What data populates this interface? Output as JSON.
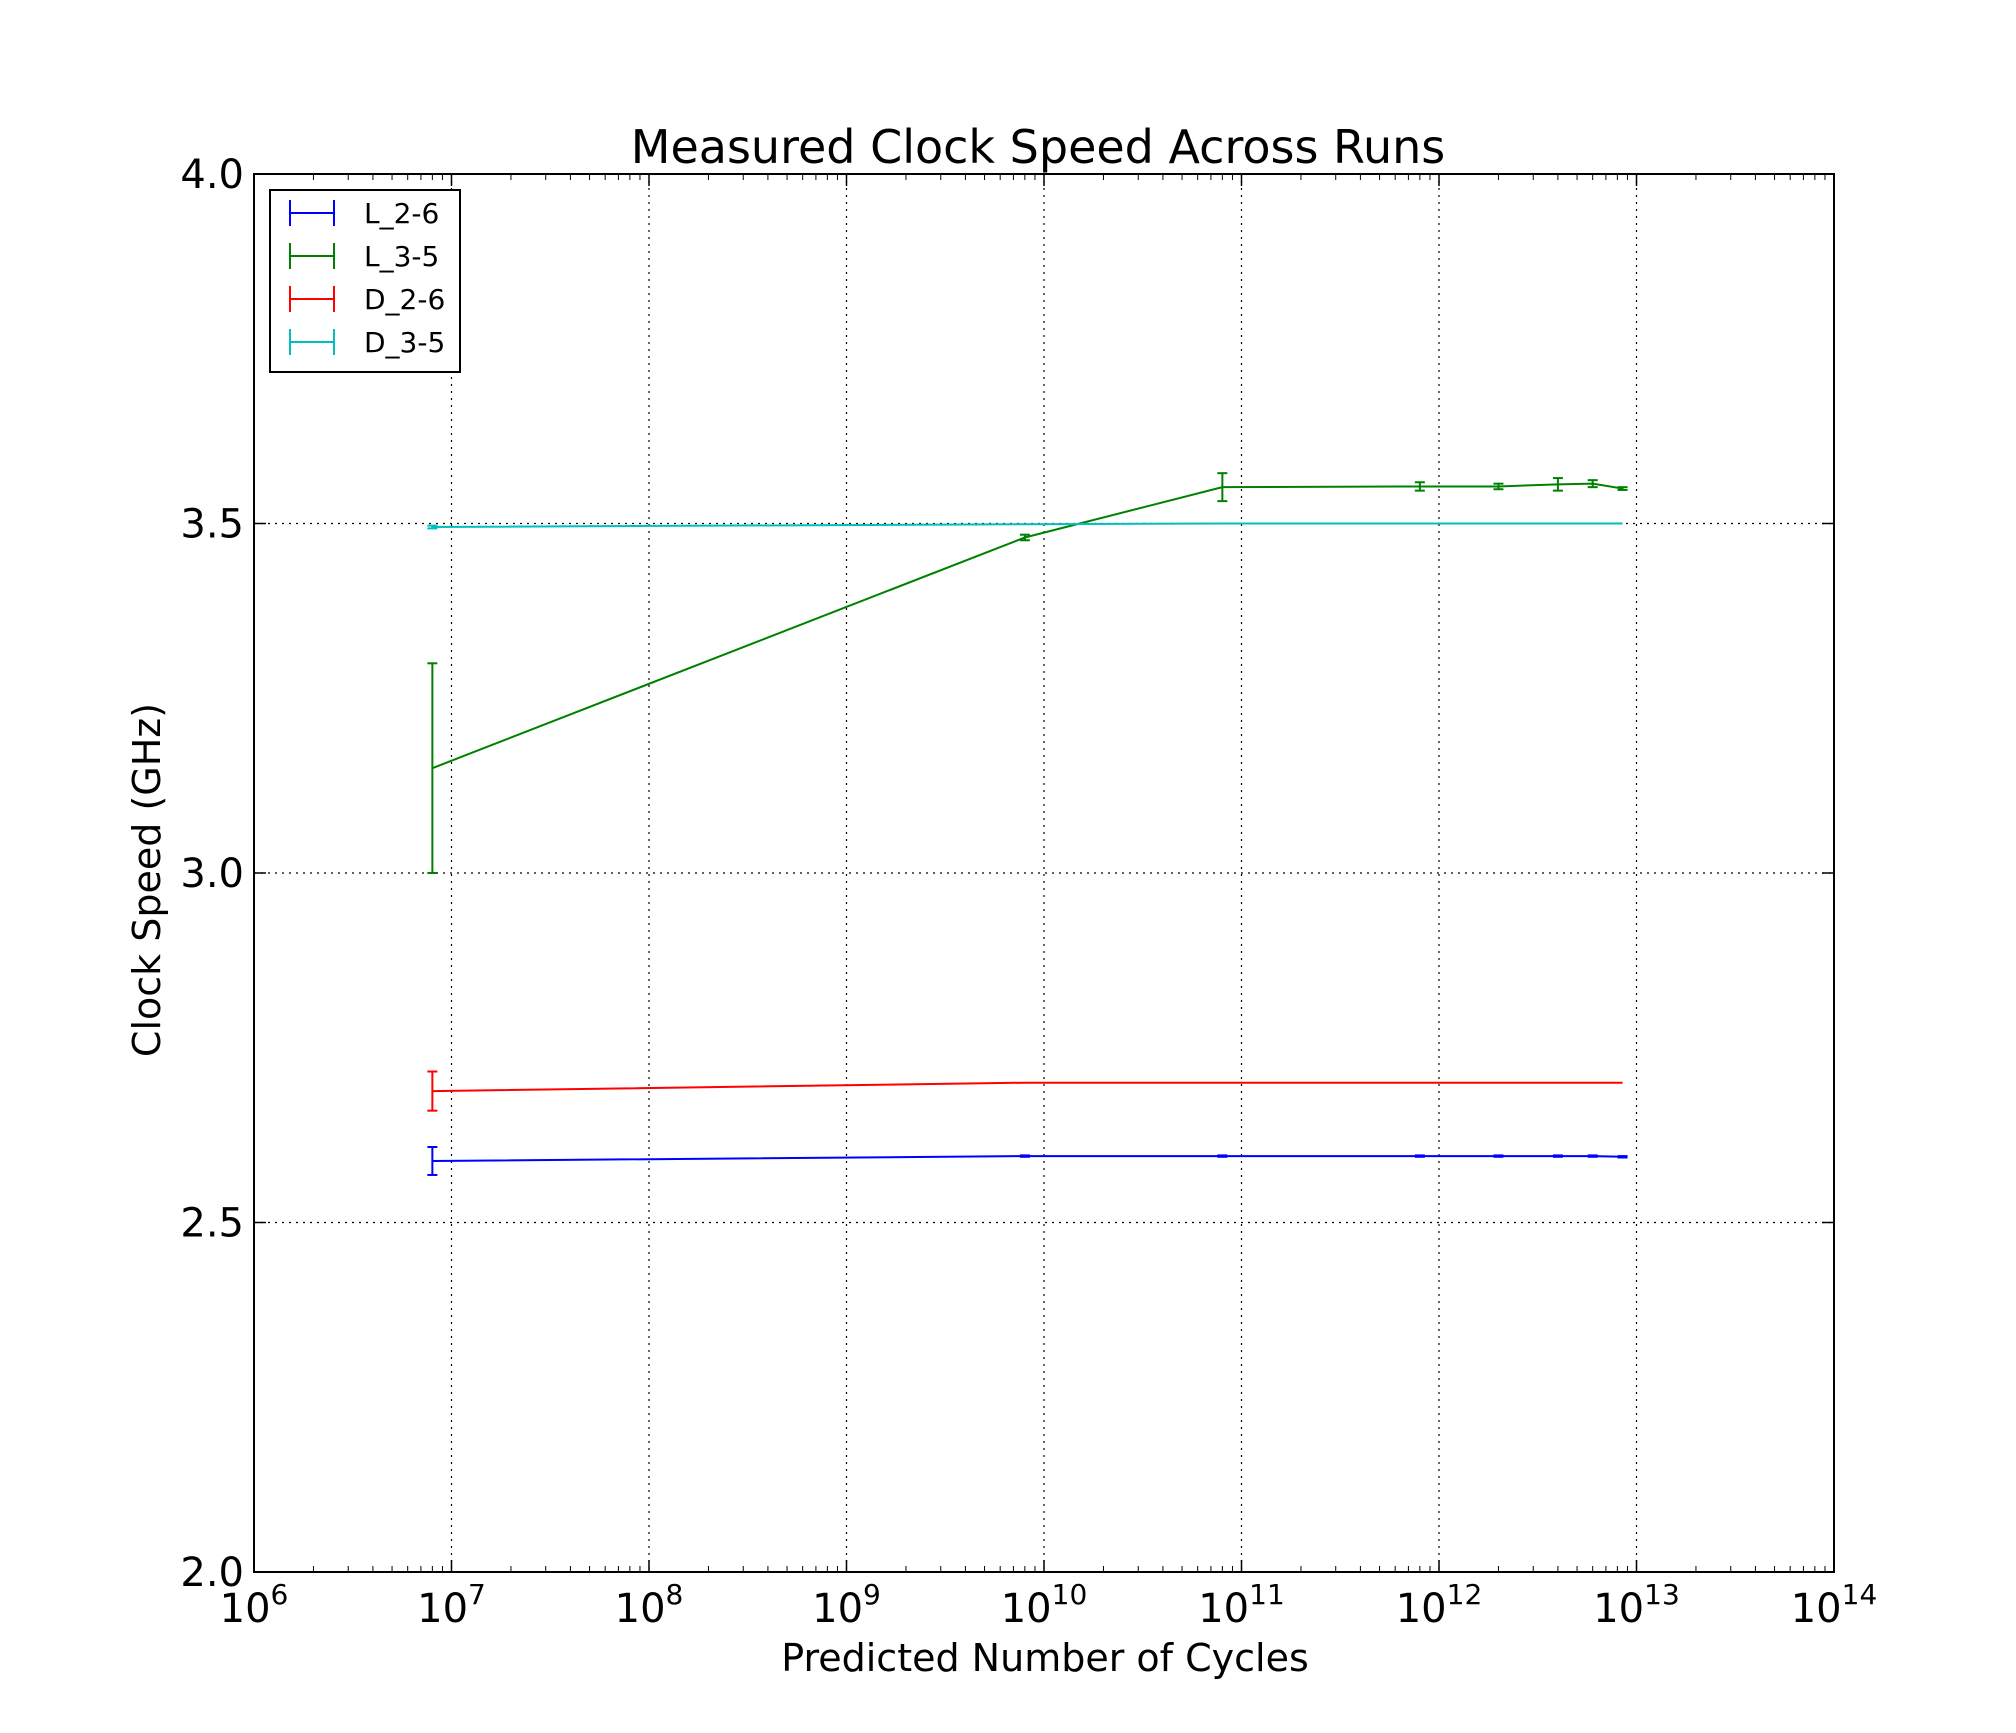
{
  "chart_data": {
    "type": "line",
    "title": "Measured Clock Speed Across Runs",
    "xlabel": "Predicted Number of Cycles",
    "ylabel": "Clock Speed (GHz)",
    "xscale": "log",
    "xlim": [
      1000000.0,
      100000000000000.0
    ],
    "ylim": [
      2.0,
      4.0
    ],
    "x_ticks": [
      {
        "value": 1000000.0,
        "base": "10",
        "exp": "6"
      },
      {
        "value": 10000000.0,
        "base": "10",
        "exp": "7"
      },
      {
        "value": 100000000.0,
        "base": "10",
        "exp": "8"
      },
      {
        "value": 1000000000.0,
        "base": "10",
        "exp": "9"
      },
      {
        "value": 10000000000.0,
        "base": "10",
        "exp": "10"
      },
      {
        "value": 100000000000.0,
        "base": "10",
        "exp": "11"
      },
      {
        "value": 1000000000000.0,
        "base": "10",
        "exp": "12"
      },
      {
        "value": 10000000000000.0,
        "base": "10",
        "exp": "13"
      },
      {
        "value": 100000000000000.0,
        "base": "10",
        "exp": "14"
      }
    ],
    "y_ticks": [
      "2.0",
      "2.5",
      "3.0",
      "3.5",
      "4.0"
    ],
    "grid": true,
    "legend_position": "top-left",
    "series": [
      {
        "name": "L_2-6",
        "color": "#0000ff",
        "x": [
          8000000.0,
          8000000000.0,
          80000000000.0,
          800000000000.0,
          2000000000000.0,
          4000000000000.0,
          6000000000000.0,
          8500000000000.0
        ],
        "y": [
          2.588,
          2.595,
          2.595,
          2.595,
          2.595,
          2.595,
          2.595,
          2.594
        ],
        "err": [
          0.02,
          0.001,
          0.001,
          0.001,
          0.001,
          0.001,
          0.001,
          0.001
        ]
      },
      {
        "name": "L_3-5",
        "color": "#008000",
        "x": [
          8000000.0,
          8000000000.0,
          80000000000.0,
          800000000000.0,
          2000000000000.0,
          4000000000000.0,
          6000000000000.0,
          8500000000000.0
        ],
        "y": [
          3.15,
          3.48,
          3.552,
          3.553,
          3.553,
          3.556,
          3.557,
          3.55
        ],
        "err": [
          0.15,
          0.004,
          0.02,
          0.006,
          0.004,
          0.009,
          0.005,
          0.002
        ]
      },
      {
        "name": "D_2-6",
        "color": "#ff0000",
        "x": [
          8000000.0,
          8000000000.0,
          80000000000.0,
          800000000000.0,
          2000000000000.0,
          4000000000000.0,
          6000000000000.0,
          8500000000000.0
        ],
        "y": [
          2.688,
          2.7,
          2.7,
          2.7,
          2.7,
          2.7,
          2.7,
          2.7
        ],
        "err": [
          0.028,
          0.0,
          0.0,
          0.0,
          0.0,
          0.0,
          0.0,
          0.0
        ]
      },
      {
        "name": "D_3-5",
        "color": "#00bfbf",
        "x": [
          8000000.0,
          8000000000.0,
          80000000000.0,
          800000000000.0,
          2000000000000.0,
          4000000000000.0,
          6000000000000.0,
          8500000000000.0
        ],
        "y": [
          3.495,
          3.499,
          3.5,
          3.5,
          3.5,
          3.5,
          3.5,
          3.5
        ],
        "err": [
          0.002,
          0.0,
          0.0,
          0.0,
          0.0,
          0.0,
          0.0,
          0.0
        ]
      }
    ]
  }
}
